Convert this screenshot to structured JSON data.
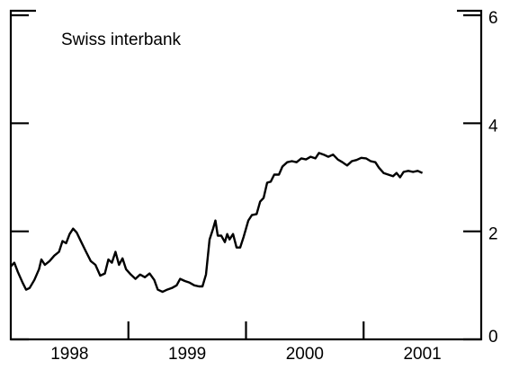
{
  "chart_data": {
    "type": "line",
    "title": "Swiss interbank",
    "x": [
      1998.0,
      1998.03,
      1998.06,
      1998.1,
      1998.13,
      1998.16,
      1998.2,
      1998.24,
      1998.26,
      1998.29,
      1998.33,
      1998.37,
      1998.41,
      1998.44,
      1998.47,
      1998.5,
      1998.53,
      1998.56,
      1998.6,
      1998.64,
      1998.68,
      1998.72,
      1998.76,
      1998.8,
      1998.83,
      1998.86,
      1998.89,
      1998.92,
      1998.95,
      1998.98,
      1999.02,
      1999.06,
      1999.1,
      1999.14,
      1999.18,
      1999.22,
      1999.25,
      1999.29,
      1999.33,
      1999.37,
      1999.41,
      1999.44,
      1999.48,
      1999.52,
      1999.56,
      1999.6,
      1999.63,
      1999.66,
      1999.69,
      1999.72,
      1999.74,
      1999.76,
      1999.79,
      1999.82,
      1999.84,
      1999.86,
      1999.89,
      1999.92,
      1999.95,
      1999.98,
      2000.02,
      2000.05,
      2000.09,
      2000.12,
      2000.15,
      2000.18,
      2000.21,
      2000.24,
      2000.28,
      2000.31,
      2000.35,
      2000.39,
      2000.43,
      2000.47,
      2000.51,
      2000.55,
      2000.59,
      2000.62,
      2000.66,
      2000.7,
      2000.74,
      2000.78,
      2000.82,
      2000.86,
      2000.9,
      2000.94,
      2000.98,
      2001.02,
      2001.06,
      2001.1,
      2001.13,
      2001.17,
      2001.21,
      2001.25,
      2001.28,
      2001.31,
      2001.34,
      2001.38,
      2001.42,
      2001.46,
      2001.5
    ],
    "series": [
      {
        "name": "Swiss interbank",
        "color": "#000000",
        "values": [
          1.35,
          1.42,
          1.25,
          1.05,
          0.92,
          0.95,
          1.1,
          1.3,
          1.48,
          1.38,
          1.45,
          1.55,
          1.62,
          1.82,
          1.78,
          1.95,
          2.05,
          1.98,
          1.8,
          1.62,
          1.45,
          1.38,
          1.18,
          1.22,
          1.48,
          1.42,
          1.62,
          1.38,
          1.5,
          1.3,
          1.2,
          1.12,
          1.2,
          1.15,
          1.22,
          1.1,
          0.92,
          0.88,
          0.92,
          0.95,
          1.0,
          1.12,
          1.08,
          1.05,
          1.0,
          0.98,
          0.98,
          1.2,
          1.85,
          2.05,
          2.2,
          1.92,
          1.92,
          1.8,
          1.95,
          1.85,
          1.95,
          1.7,
          1.7,
          1.9,
          2.2,
          2.3,
          2.32,
          2.55,
          2.62,
          2.9,
          2.92,
          3.05,
          3.05,
          3.2,
          3.28,
          3.3,
          3.28,
          3.35,
          3.33,
          3.38,
          3.35,
          3.45,
          3.42,
          3.38,
          3.42,
          3.33,
          3.28,
          3.22,
          3.3,
          3.32,
          3.36,
          3.35,
          3.3,
          3.28,
          3.18,
          3.08,
          3.05,
          3.02,
          3.08,
          3.0,
          3.1,
          3.12,
          3.1,
          3.12,
          3.08
        ]
      }
    ],
    "xlim": [
      1998,
      2002
    ],
    "xticks": [
      1999,
      2000,
      2001
    ],
    "xtick_labels": [
      {
        "value": 1998.5,
        "label": "1998"
      },
      {
        "value": 1999.5,
        "label": "1999"
      },
      {
        "value": 2000.5,
        "label": "2000"
      },
      {
        "value": 2001.5,
        "label": "2001"
      }
    ],
    "ylim": [
      0,
      6
    ],
    "yticks": [
      0,
      2,
      4,
      6
    ]
  }
}
